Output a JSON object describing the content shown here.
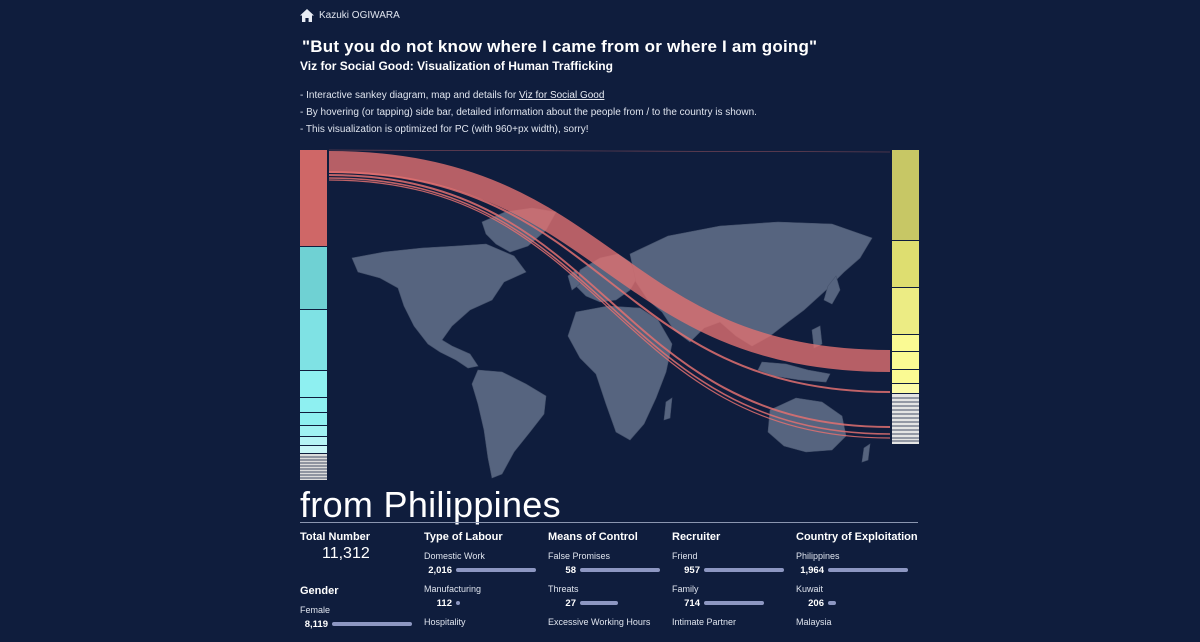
{
  "header": {
    "home_label": "Kazuki OGIWARA",
    "title": "\"But you do not know where I came from or where I am going\"",
    "subtitle": "Viz for Social Good: Visualization of Human Trafficking",
    "note1_prefix": "- Interactive sankey diagram, map and details for ",
    "note1_link": "Viz for Social Good",
    "note2": "- By hovering (or tapping) side bar, detailed information about the people from / to the country is shown.",
    "note3": "- This visualization is optimized for PC (with 960+px width), sorry!"
  },
  "colors": {
    "background": "#0f1d3d",
    "map_land": "#56647f",
    "flow": "#e07070",
    "source_bar": [
      "#cf6767",
      "#6fd1d3",
      "#7fe2e4",
      "#8ef0f1",
      "#8ef0f1",
      "#8ef0f1"
    ],
    "dest_bar": [
      "#c7c765",
      "#dede70",
      "#ecec84",
      "#fafa93",
      "#fafa93"
    ]
  },
  "details": {
    "heading": "from Philippines",
    "total": {
      "label": "Total Number",
      "value": "11,312"
    },
    "gender": {
      "label": "Gender",
      "items": [
        {
          "name": "Female",
          "value": "8,119",
          "share": 1.0
        }
      ]
    },
    "columns": [
      {
        "label": "Type of Labour",
        "items": [
          {
            "name": "Domestic Work",
            "value": "2,016",
            "share": 1.0
          },
          {
            "name": "Manufacturing",
            "value": "112",
            "share": 0.05
          },
          {
            "name": "Hospitality",
            "value": "",
            "share": 0
          }
        ]
      },
      {
        "label": "Means of Control",
        "items": [
          {
            "name": "False Promises",
            "value": "58",
            "share": 1.0
          },
          {
            "name": "Threats",
            "value": "27",
            "share": 0.47
          },
          {
            "name": "Excessive Working Hours",
            "value": "",
            "share": 0
          }
        ]
      },
      {
        "label": "Recruiter",
        "items": [
          {
            "name": "Friend",
            "value": "957",
            "share": 1.0
          },
          {
            "name": "Family",
            "value": "714",
            "share": 0.75
          },
          {
            "name": "Intimate Partner",
            "value": "",
            "share": 0
          }
        ]
      },
      {
        "label": "Country of Exploitation",
        "items": [
          {
            "name": "Philippines",
            "value": "1,964",
            "share": 1.0
          },
          {
            "name": "Kuwait",
            "value": "206",
            "share": 0.1
          },
          {
            "name": "Malaysia",
            "value": "",
            "share": 0
          }
        ]
      }
    ]
  }
}
